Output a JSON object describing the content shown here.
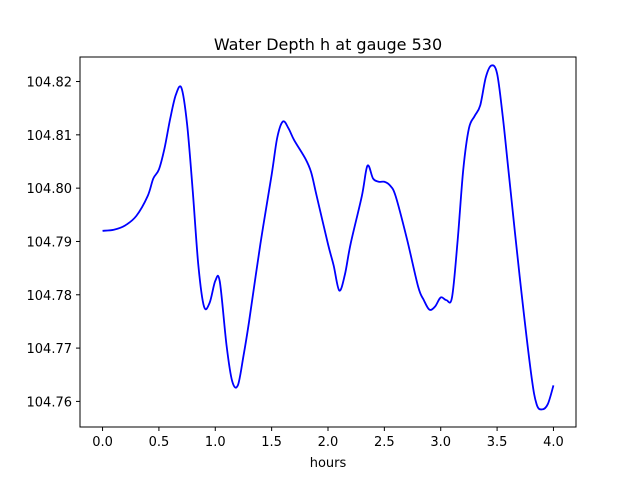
{
  "chart_data": {
    "type": "line",
    "title": "Water Depth h at gauge 530",
    "xlabel": "hours",
    "ylabel": "",
    "xlim": [
      -0.2,
      4.2
    ],
    "ylim": [
      104.7552,
      104.8246
    ],
    "grid": false,
    "xticks": [
      0.0,
      0.5,
      1.0,
      1.5,
      2.0,
      2.5,
      3.0,
      3.5,
      4.0
    ],
    "xtick_labels": [
      "0.0",
      "0.5",
      "1.0",
      "1.5",
      "2.0",
      "2.5",
      "3.0",
      "3.5",
      "4.0"
    ],
    "yticks": [
      104.76,
      104.77,
      104.78,
      104.79,
      104.8,
      104.81,
      104.82
    ],
    "ytick_labels": [
      "104.76",
      "104.77",
      "104.78",
      "104.79",
      "104.80",
      "104.81",
      "104.82"
    ],
    "series": [
      {
        "color": "#0000ff",
        "x": [
          0.0,
          0.1,
          0.2,
          0.3,
          0.4,
          0.45,
          0.5,
          0.55,
          0.6,
          0.65,
          0.7,
          0.75,
          0.8,
          0.85,
          0.9,
          0.95,
          1.0,
          1.04,
          1.1,
          1.15,
          1.2,
          1.25,
          1.3,
          1.4,
          1.5,
          1.55,
          1.6,
          1.65,
          1.7,
          1.8,
          1.85,
          1.9,
          2.0,
          2.05,
          2.1,
          2.15,
          2.2,
          2.3,
          2.35,
          2.4,
          2.45,
          2.5,
          2.55,
          2.6,
          2.7,
          2.8,
          2.85,
          2.9,
          2.95,
          3.0,
          3.05,
          3.1,
          3.15,
          3.2,
          3.25,
          3.3,
          3.35,
          3.4,
          3.45,
          3.5,
          3.55,
          3.6,
          3.7,
          3.8,
          3.85,
          3.9,
          3.95,
          4.0
        ],
        "y": [
          104.792,
          104.7922,
          104.793,
          104.7948,
          104.7985,
          104.8018,
          104.8035,
          104.8075,
          104.813,
          104.8175,
          104.8188,
          104.812,
          104.7995,
          104.7855,
          104.7778,
          104.7785,
          104.7826,
          104.7825,
          104.7705,
          104.7638,
          104.763,
          104.7685,
          104.775,
          104.7895,
          104.8025,
          104.8095,
          104.8125,
          104.8112,
          104.809,
          104.8055,
          104.803,
          104.7985,
          104.7895,
          104.7855,
          104.7808,
          104.7838,
          104.7895,
          104.7985,
          104.8042,
          104.8018,
          104.8012,
          104.8012,
          104.8005,
          104.7985,
          104.7905,
          104.7815,
          104.779,
          104.7772,
          104.7778,
          104.7795,
          104.779,
          104.7795,
          104.7902,
          104.8035,
          104.8112,
          104.8135,
          104.8155,
          104.8208,
          104.823,
          104.8215,
          104.8135,
          104.8035,
          104.7835,
          104.7655,
          104.7595,
          104.7585,
          104.7595,
          104.763
        ]
      }
    ]
  }
}
